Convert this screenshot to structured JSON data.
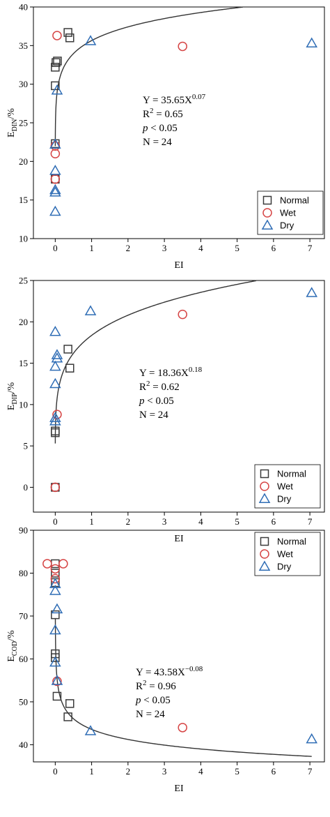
{
  "chart_data": [
    {
      "type": "scatter",
      "id": "din",
      "xlabel": "EI",
      "ylabel_main": "E",
      "ylabel_sub": "DIN",
      "ylabel_suffix": "/%",
      "xlim": [
        -0.6,
        7.4
      ],
      "ylim": [
        10,
        40
      ],
      "xticks": [
        "0",
        "1",
        "2",
        "3",
        "4",
        "5",
        "6",
        "7"
      ],
      "yticks": [
        "10",
        "15",
        "20",
        "25",
        "30",
        "35",
        "40"
      ],
      "fit": {
        "a": 35.65,
        "b": 0.07
      },
      "equation": {
        "y": "Y = 35.65X",
        "exp": "0.07",
        "r2_label": "R",
        "r2_sup": "2",
        "r2_value": " = 0.65",
        "p_label": "p",
        "p_value": " < 0.05",
        "n": "N = 24"
      },
      "legend": {
        "placement": "bottom-right",
        "items": [
          "Normal",
          "Wet",
          "Dry"
        ]
      },
      "series": [
        {
          "name": "Normal",
          "marker": "square",
          "color": "#3a3a3a",
          "points": [
            [
              0.0,
              32.2
            ],
            [
              0.02,
              32.8
            ],
            [
              0.06,
              33.0
            ],
            [
              0.0,
              29.8
            ],
            [
              0.0,
              22.3
            ],
            [
              0.0,
              17.7
            ],
            [
              0.35,
              36.7
            ],
            [
              0.4,
              36.0
            ]
          ]
        },
        {
          "name": "Wet",
          "marker": "circle",
          "color": "#d64545",
          "points": [
            [
              0.05,
              36.3
            ],
            [
              0.0,
              22.0
            ],
            [
              0.0,
              21.0
            ],
            [
              0.0,
              17.7
            ],
            [
              3.5,
              34.9
            ]
          ]
        },
        {
          "name": "Dry",
          "marker": "triangle",
          "color": "#2f6db5",
          "points": [
            [
              0.0,
              13.5
            ],
            [
              0.0,
              16.0
            ],
            [
              0.0,
              16.3
            ],
            [
              0.0,
              18.8
            ],
            [
              0.0,
              22.2
            ],
            [
              0.05,
              29.2
            ],
            [
              0.97,
              35.6
            ],
            [
              7.05,
              35.3
            ]
          ]
        }
      ]
    },
    {
      "type": "scatter",
      "id": "dip",
      "xlabel": "EI",
      "ylabel_main": "E",
      "ylabel_sub": "DIP",
      "ylabel_suffix": "/%",
      "xlim": [
        -0.6,
        7.4
      ],
      "ylim": [
        -3,
        25
      ],
      "xticks": [
        "0",
        "1",
        "2",
        "3",
        "4",
        "5",
        "6",
        "7"
      ],
      "yticks": [
        "0",
        "5",
        "10",
        "15",
        "20",
        "25"
      ],
      "fit": {
        "a": 18.36,
        "b": 0.18
      },
      "equation": {
        "y": "Y = 18.36X",
        "exp": "0.18",
        "r2_label": "R",
        "r2_sup": "2",
        "r2_value": " = 0.62",
        "p_label": "p",
        "p_value": " < 0.05",
        "n": "N = 24"
      },
      "legend": {
        "placement": "bottom-right",
        "items": [
          "Normal",
          "Wet",
          "Dry"
        ]
      },
      "series": [
        {
          "name": "Normal",
          "marker": "square",
          "color": "#3a3a3a",
          "points": [
            [
              0.0,
              6.6
            ],
            [
              0.0,
              6.8
            ],
            [
              0.0,
              0.0
            ],
            [
              0.35,
              16.7
            ],
            [
              0.4,
              14.4
            ]
          ]
        },
        {
          "name": "Wet",
          "marker": "circle",
          "color": "#d64545",
          "points": [
            [
              0.05,
              8.8
            ],
            [
              0.0,
              0.0
            ],
            [
              3.5,
              20.9
            ]
          ]
        },
        {
          "name": "Dry",
          "marker": "triangle",
          "color": "#2f6db5",
          "points": [
            [
              0.0,
              8.0
            ],
            [
              0.0,
              8.4
            ],
            [
              0.0,
              12.5
            ],
            [
              0.0,
              14.6
            ],
            [
              0.05,
              15.6
            ],
            [
              0.05,
              16.0
            ],
            [
              0.0,
              18.8
            ],
            [
              0.97,
              21.3
            ],
            [
              7.05,
              23.5
            ]
          ]
        }
      ]
    },
    {
      "type": "scatter",
      "id": "cod",
      "xlabel": "EI",
      "ylabel_main": "E",
      "ylabel_sub": "COD",
      "ylabel_suffix": "/%",
      "xlim": [
        -0.6,
        7.4
      ],
      "ylim": [
        36,
        90
      ],
      "xticks": [
        "0",
        "1",
        "2",
        "3",
        "4",
        "5",
        "6",
        "7"
      ],
      "yticks": [
        "40",
        "50",
        "60",
        "70",
        "80",
        "90"
      ],
      "fit": {
        "a": 43.58,
        "b": -0.08
      },
      "equation": {
        "y": "Y = 43.58X",
        "exp": "−0.08",
        "r2_label": "R",
        "r2_sup": "2",
        "r2_value": " = 0.96",
        "p_label": "p",
        "p_value": " < 0.05",
        "n": "N = 24"
      },
      "legend": {
        "placement": "top-right",
        "items": [
          "Normal",
          "Wet",
          "Dry"
        ]
      },
      "series": [
        {
          "name": "Normal",
          "marker": "square",
          "color": "#3a3a3a",
          "points": [
            [
              0.0,
              82.2
            ],
            [
              0.0,
              80.0
            ],
            [
              0.0,
              77.8
            ],
            [
              0.0,
              70.3
            ],
            [
              0.0,
              61.2
            ],
            [
              0.0,
              60.3
            ],
            [
              0.05,
              51.3
            ],
            [
              0.35,
              46.5
            ],
            [
              0.4,
              49.6
            ]
          ]
        },
        {
          "name": "Wet",
          "marker": "circle",
          "color": "#d64545",
          "points": [
            [
              -0.22,
              82.2
            ],
            [
              0.0,
              81.0
            ],
            [
              0.0,
              78.7
            ],
            [
              0.22,
              82.2
            ],
            [
              0.05,
              54.8
            ],
            [
              3.5,
              44.0
            ]
          ]
        },
        {
          "name": "Dry",
          "marker": "triangle",
          "color": "#2f6db5",
          "points": [
            [
              0.0,
              77.5
            ],
            [
              0.0,
              75.9
            ],
            [
              0.05,
              71.6
            ],
            [
              0.0,
              66.7
            ],
            [
              0.0,
              59.2
            ],
            [
              0.05,
              54.9
            ],
            [
              0.97,
              43.2
            ],
            [
              7.05,
              41.3
            ]
          ]
        }
      ]
    }
  ]
}
